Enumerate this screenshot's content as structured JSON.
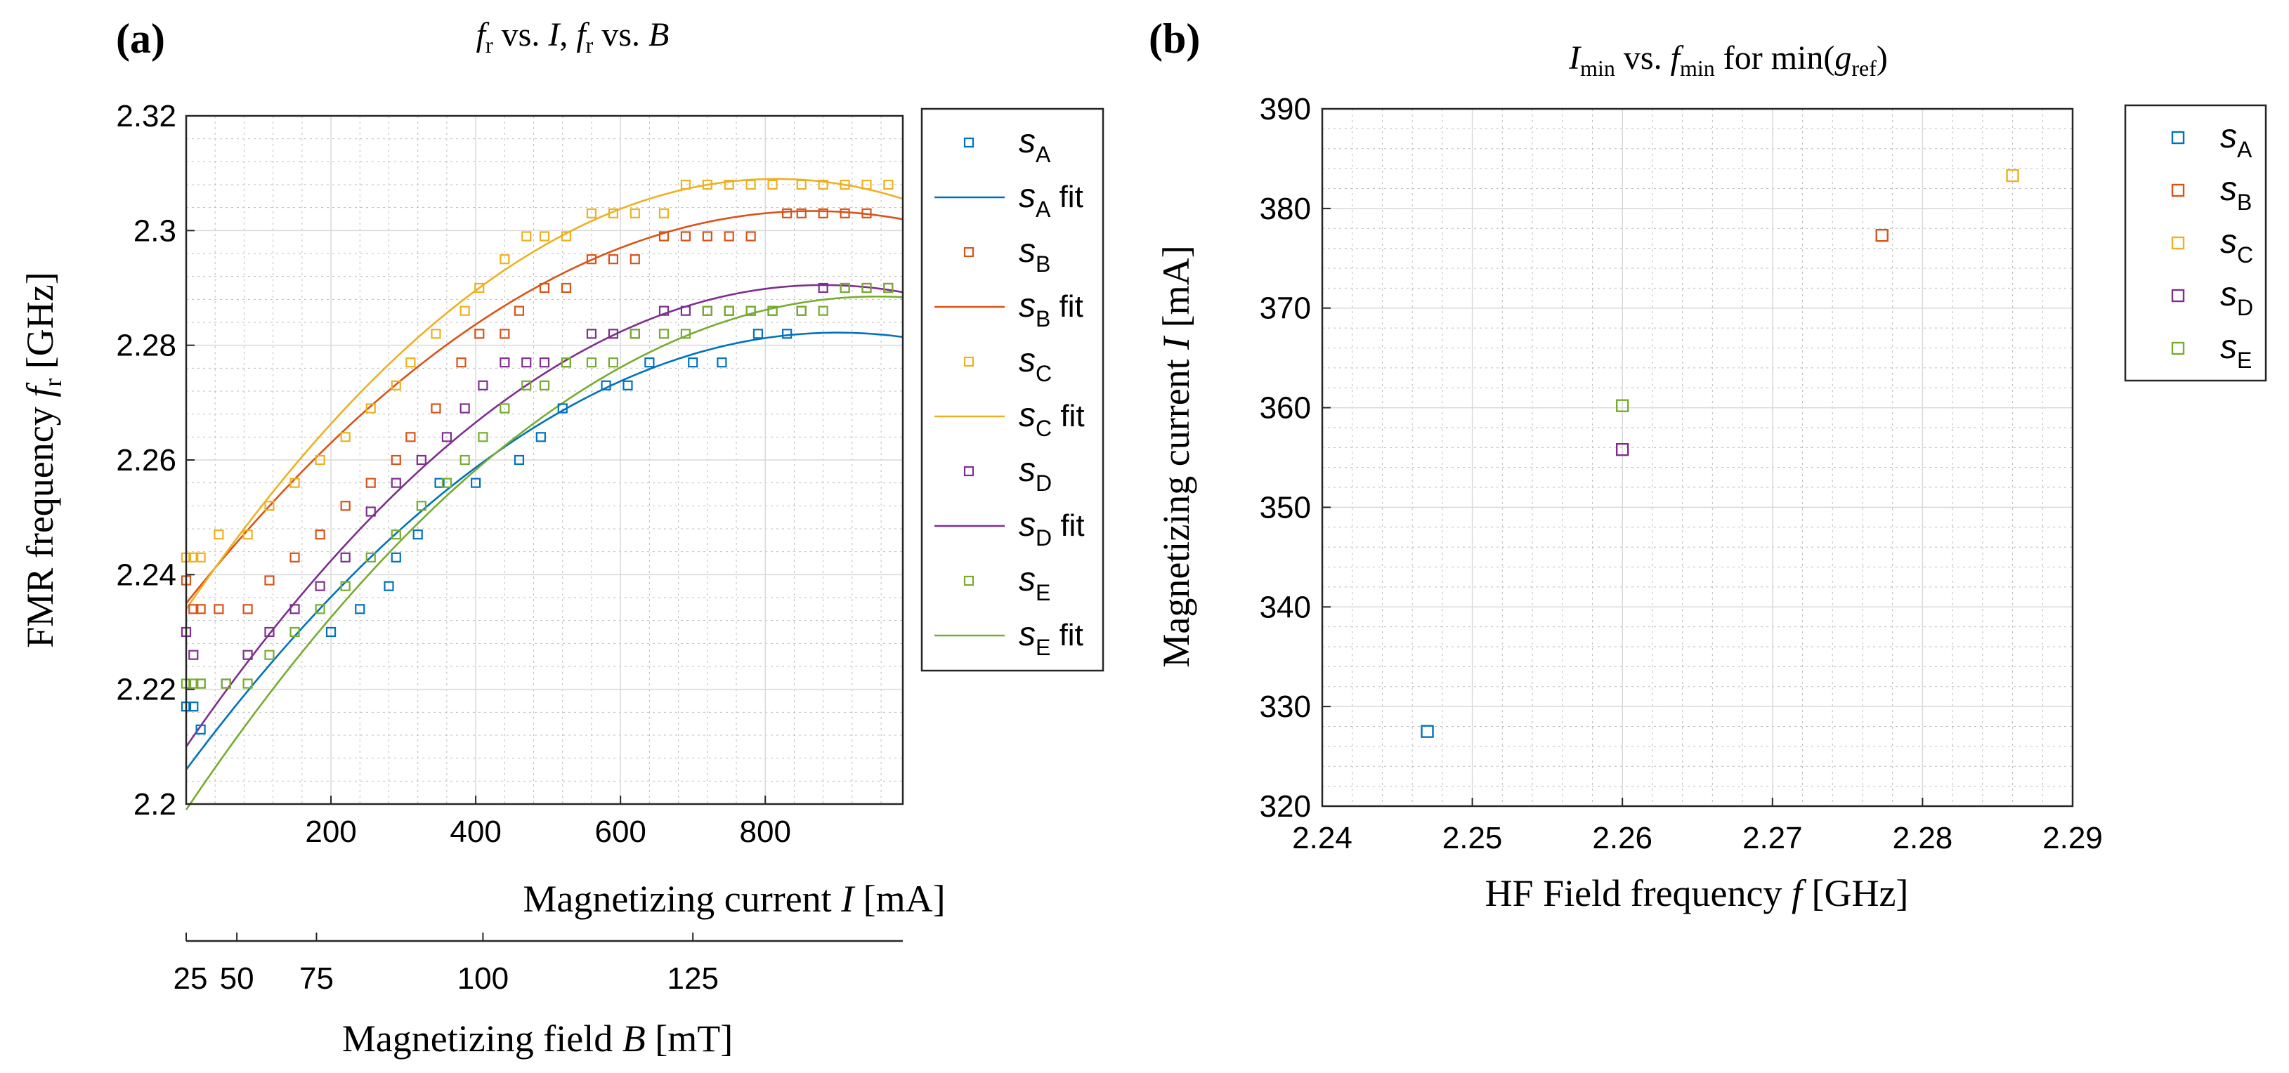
{
  "panel_a": {
    "letter": "(a)",
    "title_parts": [
      "f",
      "r",
      " vs. ",
      "I",
      ", ",
      "f",
      "r",
      " vs. ",
      "B"
    ],
    "ylabel_parts": [
      "FMR frequency ",
      "f",
      "r",
      " [GHz]"
    ],
    "xlabel_parts": [
      "Magnetizing current ",
      "I",
      " [mA]"
    ],
    "x2label_parts": [
      "Magnetizing field ",
      "B",
      " [mT]"
    ],
    "xticks": [
      "200",
      "400",
      "600",
      "800"
    ],
    "yticks": [
      "2.2",
      "2.22",
      "2.24",
      "2.26",
      "2.28",
      "2.3",
      "2.32"
    ],
    "x2ticks": [
      "25",
      "50",
      "75",
      "100",
      "125"
    ],
    "legend": [
      {
        "s": "s",
        "sub": "A",
        "suffix": ""
      },
      {
        "s": "s",
        "sub": "A",
        "suffix": " fit"
      },
      {
        "s": "s",
        "sub": "B",
        "suffix": ""
      },
      {
        "s": "s",
        "sub": "B",
        "suffix": " fit"
      },
      {
        "s": "s",
        "sub": "C",
        "suffix": ""
      },
      {
        "s": "s",
        "sub": "C",
        "suffix": " fit"
      },
      {
        "s": "s",
        "sub": "D",
        "suffix": ""
      },
      {
        "s": "s",
        "sub": "D",
        "suffix": " fit"
      },
      {
        "s": "s",
        "sub": "E",
        "suffix": ""
      },
      {
        "s": "s",
        "sub": "E",
        "suffix": " fit"
      }
    ]
  },
  "panel_b": {
    "letter": "(b)",
    "title_parts": [
      "I",
      "min",
      " vs. ",
      "f",
      "min",
      " for min(",
      "g",
      "ref",
      ")"
    ],
    "ylabel_parts": [
      "Magnetizing current ",
      "I",
      " [mA]"
    ],
    "xlabel_parts": [
      "HF Field frequency ",
      "f",
      " [GHz]"
    ],
    "xticks": [
      "2.24",
      "2.25",
      "2.26",
      "2.27",
      "2.28",
      "2.29"
    ],
    "yticks": [
      "320",
      "330",
      "340",
      "350",
      "360",
      "370",
      "380",
      "390"
    ],
    "legend": [
      {
        "s": "s",
        "sub": "A"
      },
      {
        "s": "s",
        "sub": "B"
      },
      {
        "s": "s",
        "sub": "C"
      },
      {
        "s": "s",
        "sub": "D"
      },
      {
        "s": "s",
        "sub": "E"
      }
    ]
  },
  "colors": {
    "A": "#0072BD",
    "B": "#D95319",
    "C": "#EDB120",
    "D": "#7E2F8E",
    "E": "#77AC30"
  },
  "chart_data": [
    {
      "type": "scatter",
      "title": "fr vs. I, fr vs. B",
      "xlabel": "Magnetizing current I [mA]",
      "ylabel": "FMR frequency fr [GHz]",
      "x2label": "Magnetizing field B [mT]",
      "xlim": [
        0,
        990
      ],
      "ylim": [
        2.2,
        2.32
      ],
      "x2_ticks": [
        {
          "label": "25",
          "x": 0
        },
        {
          "label": "50",
          "x": 70
        },
        {
          "label": "75",
          "x": 180
        },
        {
          "label": "100",
          "x": 410
        },
        {
          "label": "125",
          "x": 700
        }
      ],
      "grid": true,
      "minor_grid": true,
      "legend_position": "outside-right",
      "series": [
        {
          "key": "A",
          "name": "sA",
          "x": [
            0,
            10,
            20,
            200,
            240,
            280,
            290,
            320,
            350,
            400,
            460,
            490,
            520,
            580,
            610,
            640,
            700,
            740,
            790,
            830
          ],
          "y": [
            2.217,
            2.217,
            2.213,
            2.23,
            2.234,
            2.238,
            2.243,
            2.247,
            2.256,
            2.256,
            2.26,
            2.264,
            2.269,
            2.273,
            2.273,
            2.277,
            2.277,
            2.277,
            2.282,
            2.282
          ]
        },
        {
          "key": "A",
          "name": "sA fit",
          "fit": true,
          "x": [
            0,
            990
          ],
          "y": [
            2.206,
            2.281
          ],
          "vertex": [
            900,
            2.2822
          ]
        },
        {
          "key": "B",
          "name": "sB",
          "x": [
            0,
            10,
            20,
            45,
            85,
            115,
            150,
            185,
            220,
            255,
            290,
            310,
            345,
            380,
            405,
            440,
            460,
            495,
            525,
            560,
            590,
            620,
            660,
            690,
            720,
            750,
            780,
            830,
            850,
            880,
            910,
            940
          ],
          "y": [
            2.239,
            2.234,
            2.234,
            2.234,
            2.234,
            2.239,
            2.243,
            2.247,
            2.252,
            2.256,
            2.26,
            2.264,
            2.269,
            2.277,
            2.282,
            2.282,
            2.286,
            2.29,
            2.29,
            2.295,
            2.295,
            2.295,
            2.299,
            2.299,
            2.299,
            2.299,
            2.299,
            2.303,
            2.303,
            2.303,
            2.303,
            2.303
          ]
        },
        {
          "key": "B",
          "name": "sB fit",
          "fit": true,
          "x": [
            0,
            990
          ],
          "y": [
            2.235,
            2.301
          ],
          "vertex": [
            865,
            2.3034
          ]
        },
        {
          "key": "C",
          "name": "sC",
          "x": [
            0,
            10,
            20,
            45,
            85,
            115,
            150,
            185,
            220,
            255,
            290,
            310,
            345,
            385,
            405,
            440,
            470,
            495,
            525,
            560,
            590,
            620,
            660,
            690,
            720,
            750,
            780,
            810,
            850,
            880,
            910,
            940,
            970
          ],
          "y": [
            2.243,
            2.243,
            2.243,
            2.247,
            2.247,
            2.252,
            2.256,
            2.26,
            2.264,
            2.269,
            2.273,
            2.277,
            2.282,
            2.286,
            2.29,
            2.295,
            2.299,
            2.299,
            2.299,
            2.303,
            2.303,
            2.303,
            2.303,
            2.308,
            2.308,
            2.308,
            2.308,
            2.308,
            2.308,
            2.308,
            2.308,
            2.308,
            2.308
          ]
        },
        {
          "key": "C",
          "name": "sC fit",
          "fit": true,
          "x": [
            0,
            990
          ],
          "y": [
            2.234,
            2.305
          ],
          "vertex": [
            815,
            2.309
          ]
        },
        {
          "key": "D",
          "name": "sD",
          "x": [
            0,
            10,
            20,
            55,
            85,
            115,
            150,
            185,
            220,
            255,
            290,
            325,
            360,
            385,
            410,
            440,
            470,
            495,
            525,
            560,
            590,
            620,
            660,
            690,
            720,
            750,
            780,
            810,
            850,
            880,
            910,
            940,
            970
          ],
          "y": [
            2.23,
            2.226,
            2.221,
            2.221,
            2.226,
            2.23,
            2.234,
            2.238,
            2.243,
            2.251,
            2.256,
            2.26,
            2.264,
            2.269,
            2.273,
            2.277,
            2.277,
            2.277,
            2.277,
            2.282,
            2.282,
            2.282,
            2.286,
            2.286,
            2.286,
            2.286,
            2.286,
            2.286,
            2.286,
            2.29,
            2.29,
            2.29,
            2.29
          ]
        },
        {
          "key": "D",
          "name": "sD fit",
          "fit": true,
          "x": [
            0,
            990
          ],
          "y": [
            2.21,
            2.289
          ],
          "vertex": [
            880,
            2.2905
          ]
        },
        {
          "key": "E",
          "name": "sE",
          "x": [
            0,
            10,
            20,
            55,
            85,
            115,
            150,
            185,
            220,
            255,
            290,
            325,
            360,
            385,
            410,
            440,
            470,
            495,
            525,
            560,
            590,
            620,
            660,
            690,
            720,
            750,
            780,
            810,
            850,
            880,
            910,
            940,
            970
          ],
          "y": [
            2.221,
            2.221,
            2.221,
            2.221,
            2.221,
            2.226,
            2.23,
            2.234,
            2.238,
            2.243,
            2.247,
            2.252,
            2.256,
            2.26,
            2.264,
            2.269,
            2.273,
            2.273,
            2.277,
            2.277,
            2.277,
            2.282,
            2.282,
            2.282,
            2.286,
            2.286,
            2.286,
            2.286,
            2.286,
            2.286,
            2.29,
            2.29,
            2.29
          ]
        },
        {
          "key": "E",
          "name": "sE fit",
          "fit": true,
          "x": [
            0,
            990
          ],
          "y": [
            2.199,
            2.288
          ],
          "vertex": [
            955,
            2.2885
          ]
        }
      ]
    },
    {
      "type": "scatter",
      "title": "Imin vs. fmin for min(gref)",
      "xlabel": "HF Field frequency f [GHz]",
      "ylabel": "Magnetizing current I [mA]",
      "xlim": [
        2.24,
        2.29
      ],
      "ylim": [
        320,
        390
      ],
      "grid": true,
      "minor_grid": true,
      "legend_position": "outside-right",
      "series": [
        {
          "key": "A",
          "name": "sA",
          "x": [
            2.247
          ],
          "y": [
            327.5
          ]
        },
        {
          "key": "B",
          "name": "sB",
          "x": [
            2.2773
          ],
          "y": [
            377.3
          ]
        },
        {
          "key": "C",
          "name": "sC",
          "x": [
            2.286
          ],
          "y": [
            383.3
          ]
        },
        {
          "key": "D",
          "name": "sD",
          "x": [
            2.26
          ],
          "y": [
            355.8
          ]
        },
        {
          "key": "E",
          "name": "sE",
          "x": [
            2.26
          ],
          "y": [
            360.2
          ]
        }
      ]
    }
  ]
}
